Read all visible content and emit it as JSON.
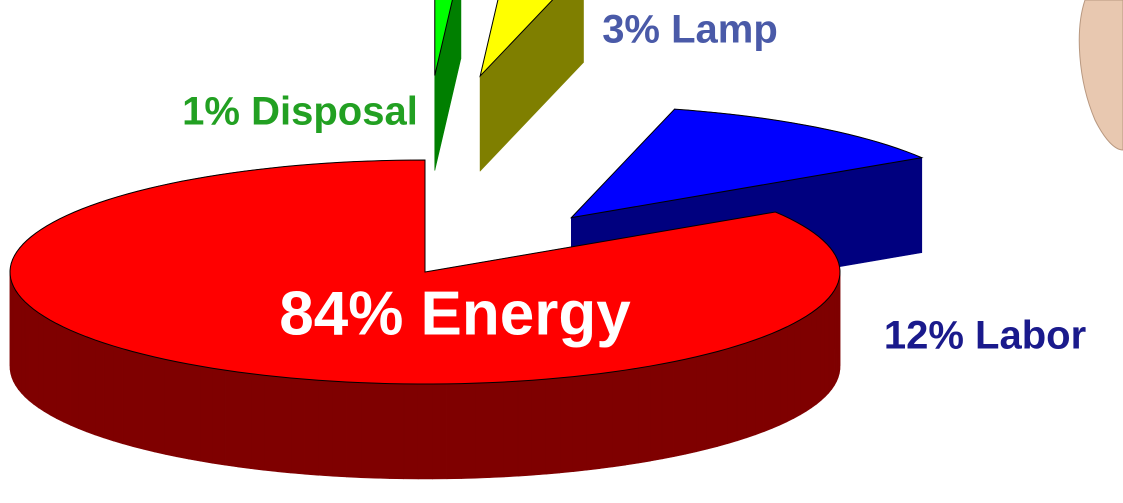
{
  "chart_data": {
    "type": "pie3d",
    "values": [
      84,
      12,
      3,
      1
    ],
    "value_labels": [
      "84% Energy",
      "12% Labor",
      "3% Lamp",
      "1% Disposal"
    ],
    "colors": [
      "#ff0000",
      "#0000ff",
      "#ffff00",
      "#00ff00"
    ]
  }
}
